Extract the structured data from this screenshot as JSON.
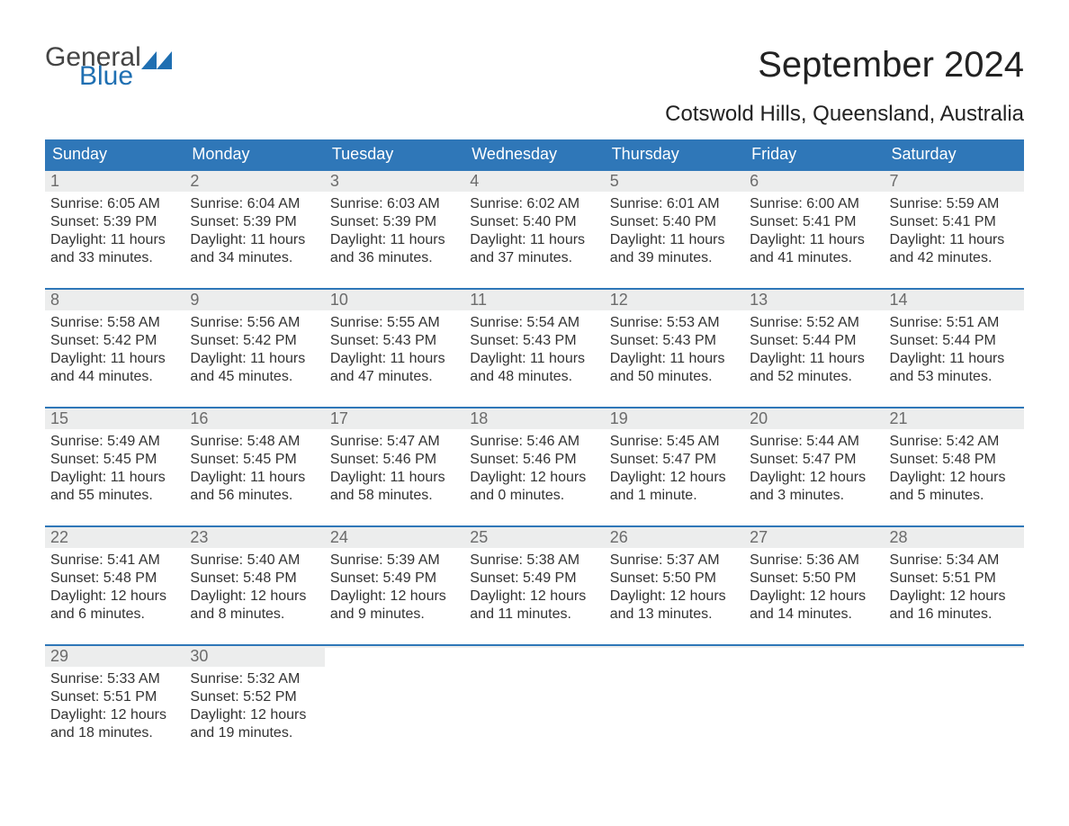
{
  "logo": {
    "text1": "General",
    "text2": "Blue"
  },
  "title": "September 2024",
  "location": "Cotswold Hills, Queensland, Australia",
  "colors": {
    "header_bg": "#2f77b8",
    "header_text": "#ffffff",
    "daynum_bg": "#eceded",
    "daynum_text": "#6b6b6b",
    "body_text": "#333333",
    "week_border": "#2f77b8",
    "logo_blue": "#1f6fb2",
    "logo_gray": "#444444",
    "page_bg": "#ffffff"
  },
  "typography": {
    "title_fontsize": 40,
    "location_fontsize": 24,
    "header_fontsize": 18,
    "daynum_fontsize": 18,
    "body_fontsize": 16,
    "logo_fontsize": 30
  },
  "layout": {
    "columns": 7,
    "rows": 5
  },
  "day_headers": [
    "Sunday",
    "Monday",
    "Tuesday",
    "Wednesday",
    "Thursday",
    "Friday",
    "Saturday"
  ],
  "weeks": [
    [
      {
        "n": "1",
        "sunrise": "Sunrise: 6:05 AM",
        "sunset": "Sunset: 5:39 PM",
        "d1": "Daylight: 11 hours",
        "d2": "and 33 minutes."
      },
      {
        "n": "2",
        "sunrise": "Sunrise: 6:04 AM",
        "sunset": "Sunset: 5:39 PM",
        "d1": "Daylight: 11 hours",
        "d2": "and 34 minutes."
      },
      {
        "n": "3",
        "sunrise": "Sunrise: 6:03 AM",
        "sunset": "Sunset: 5:39 PM",
        "d1": "Daylight: 11 hours",
        "d2": "and 36 minutes."
      },
      {
        "n": "4",
        "sunrise": "Sunrise: 6:02 AM",
        "sunset": "Sunset: 5:40 PM",
        "d1": "Daylight: 11 hours",
        "d2": "and 37 minutes."
      },
      {
        "n": "5",
        "sunrise": "Sunrise: 6:01 AM",
        "sunset": "Sunset: 5:40 PM",
        "d1": "Daylight: 11 hours",
        "d2": "and 39 minutes."
      },
      {
        "n": "6",
        "sunrise": "Sunrise: 6:00 AM",
        "sunset": "Sunset: 5:41 PM",
        "d1": "Daylight: 11 hours",
        "d2": "and 41 minutes."
      },
      {
        "n": "7",
        "sunrise": "Sunrise: 5:59 AM",
        "sunset": "Sunset: 5:41 PM",
        "d1": "Daylight: 11 hours",
        "d2": "and 42 minutes."
      }
    ],
    [
      {
        "n": "8",
        "sunrise": "Sunrise: 5:58 AM",
        "sunset": "Sunset: 5:42 PM",
        "d1": "Daylight: 11 hours",
        "d2": "and 44 minutes."
      },
      {
        "n": "9",
        "sunrise": "Sunrise: 5:56 AM",
        "sunset": "Sunset: 5:42 PM",
        "d1": "Daylight: 11 hours",
        "d2": "and 45 minutes."
      },
      {
        "n": "10",
        "sunrise": "Sunrise: 5:55 AM",
        "sunset": "Sunset: 5:43 PM",
        "d1": "Daylight: 11 hours",
        "d2": "and 47 minutes."
      },
      {
        "n": "11",
        "sunrise": "Sunrise: 5:54 AM",
        "sunset": "Sunset: 5:43 PM",
        "d1": "Daylight: 11 hours",
        "d2": "and 48 minutes."
      },
      {
        "n": "12",
        "sunrise": "Sunrise: 5:53 AM",
        "sunset": "Sunset: 5:43 PM",
        "d1": "Daylight: 11 hours",
        "d2": "and 50 minutes."
      },
      {
        "n": "13",
        "sunrise": "Sunrise: 5:52 AM",
        "sunset": "Sunset: 5:44 PM",
        "d1": "Daylight: 11 hours",
        "d2": "and 52 minutes."
      },
      {
        "n": "14",
        "sunrise": "Sunrise: 5:51 AM",
        "sunset": "Sunset: 5:44 PM",
        "d1": "Daylight: 11 hours",
        "d2": "and 53 minutes."
      }
    ],
    [
      {
        "n": "15",
        "sunrise": "Sunrise: 5:49 AM",
        "sunset": "Sunset: 5:45 PM",
        "d1": "Daylight: 11 hours",
        "d2": "and 55 minutes."
      },
      {
        "n": "16",
        "sunrise": "Sunrise: 5:48 AM",
        "sunset": "Sunset: 5:45 PM",
        "d1": "Daylight: 11 hours",
        "d2": "and 56 minutes."
      },
      {
        "n": "17",
        "sunrise": "Sunrise: 5:47 AM",
        "sunset": "Sunset: 5:46 PM",
        "d1": "Daylight: 11 hours",
        "d2": "and 58 minutes."
      },
      {
        "n": "18",
        "sunrise": "Sunrise: 5:46 AM",
        "sunset": "Sunset: 5:46 PM",
        "d1": "Daylight: 12 hours",
        "d2": "and 0 minutes."
      },
      {
        "n": "19",
        "sunrise": "Sunrise: 5:45 AM",
        "sunset": "Sunset: 5:47 PM",
        "d1": "Daylight: 12 hours",
        "d2": "and 1 minute."
      },
      {
        "n": "20",
        "sunrise": "Sunrise: 5:44 AM",
        "sunset": "Sunset: 5:47 PM",
        "d1": "Daylight: 12 hours",
        "d2": "and 3 minutes."
      },
      {
        "n": "21",
        "sunrise": "Sunrise: 5:42 AM",
        "sunset": "Sunset: 5:48 PM",
        "d1": "Daylight: 12 hours",
        "d2": "and 5 minutes."
      }
    ],
    [
      {
        "n": "22",
        "sunrise": "Sunrise: 5:41 AM",
        "sunset": "Sunset: 5:48 PM",
        "d1": "Daylight: 12 hours",
        "d2": "and 6 minutes."
      },
      {
        "n": "23",
        "sunrise": "Sunrise: 5:40 AM",
        "sunset": "Sunset: 5:48 PM",
        "d1": "Daylight: 12 hours",
        "d2": "and 8 minutes."
      },
      {
        "n": "24",
        "sunrise": "Sunrise: 5:39 AM",
        "sunset": "Sunset: 5:49 PM",
        "d1": "Daylight: 12 hours",
        "d2": "and 9 minutes."
      },
      {
        "n": "25",
        "sunrise": "Sunrise: 5:38 AM",
        "sunset": "Sunset: 5:49 PM",
        "d1": "Daylight: 12 hours",
        "d2": "and 11 minutes."
      },
      {
        "n": "26",
        "sunrise": "Sunrise: 5:37 AM",
        "sunset": "Sunset: 5:50 PM",
        "d1": "Daylight: 12 hours",
        "d2": "and 13 minutes."
      },
      {
        "n": "27",
        "sunrise": "Sunrise: 5:36 AM",
        "sunset": "Sunset: 5:50 PM",
        "d1": "Daylight: 12 hours",
        "d2": "and 14 minutes."
      },
      {
        "n": "28",
        "sunrise": "Sunrise: 5:34 AM",
        "sunset": "Sunset: 5:51 PM",
        "d1": "Daylight: 12 hours",
        "d2": "and 16 minutes."
      }
    ],
    [
      {
        "n": "29",
        "sunrise": "Sunrise: 5:33 AM",
        "sunset": "Sunset: 5:51 PM",
        "d1": "Daylight: 12 hours",
        "d2": "and 18 minutes."
      },
      {
        "n": "30",
        "sunrise": "Sunrise: 5:32 AM",
        "sunset": "Sunset: 5:52 PM",
        "d1": "Daylight: 12 hours",
        "d2": "and 19 minutes."
      },
      {
        "n": "",
        "sunrise": "",
        "sunset": "",
        "d1": "",
        "d2": ""
      },
      {
        "n": "",
        "sunrise": "",
        "sunset": "",
        "d1": "",
        "d2": ""
      },
      {
        "n": "",
        "sunrise": "",
        "sunset": "",
        "d1": "",
        "d2": ""
      },
      {
        "n": "",
        "sunrise": "",
        "sunset": "",
        "d1": "",
        "d2": ""
      },
      {
        "n": "",
        "sunrise": "",
        "sunset": "",
        "d1": "",
        "d2": ""
      }
    ]
  ]
}
